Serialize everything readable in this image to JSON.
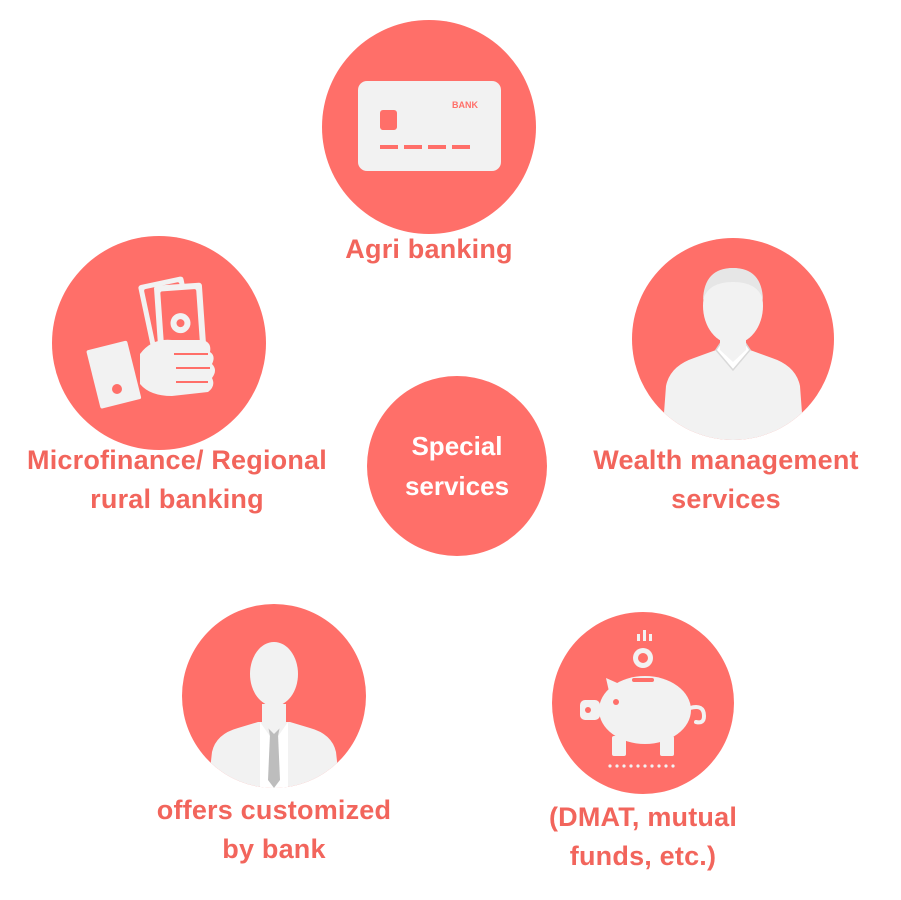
{
  "center": {
    "line1": "Special",
    "line2": "services"
  },
  "nodes": {
    "agri": {
      "icon": "bank-card-icon",
      "card_text": "BANK",
      "label": "Agri banking"
    },
    "microfinance": {
      "icon": "hand-holding-money-icon",
      "label_line1": "Microfinance/ Regional",
      "label_line2": "rural banking"
    },
    "wealth": {
      "icon": "person-avatar-icon",
      "label_line1": "Wealth management",
      "label_line2": "services"
    },
    "offers": {
      "icon": "businessman-avatar-icon",
      "label_line1": "offers customized",
      "label_line2": "by bank"
    },
    "dmat": {
      "icon": "piggy-bank-icon",
      "label_line1": "(DMAT, mutual",
      "label_line2": "funds, etc.)"
    }
  },
  "colors": {
    "circle": "#ff6f69",
    "label": "#f2655c",
    "icon": "#f2f2f2"
  }
}
